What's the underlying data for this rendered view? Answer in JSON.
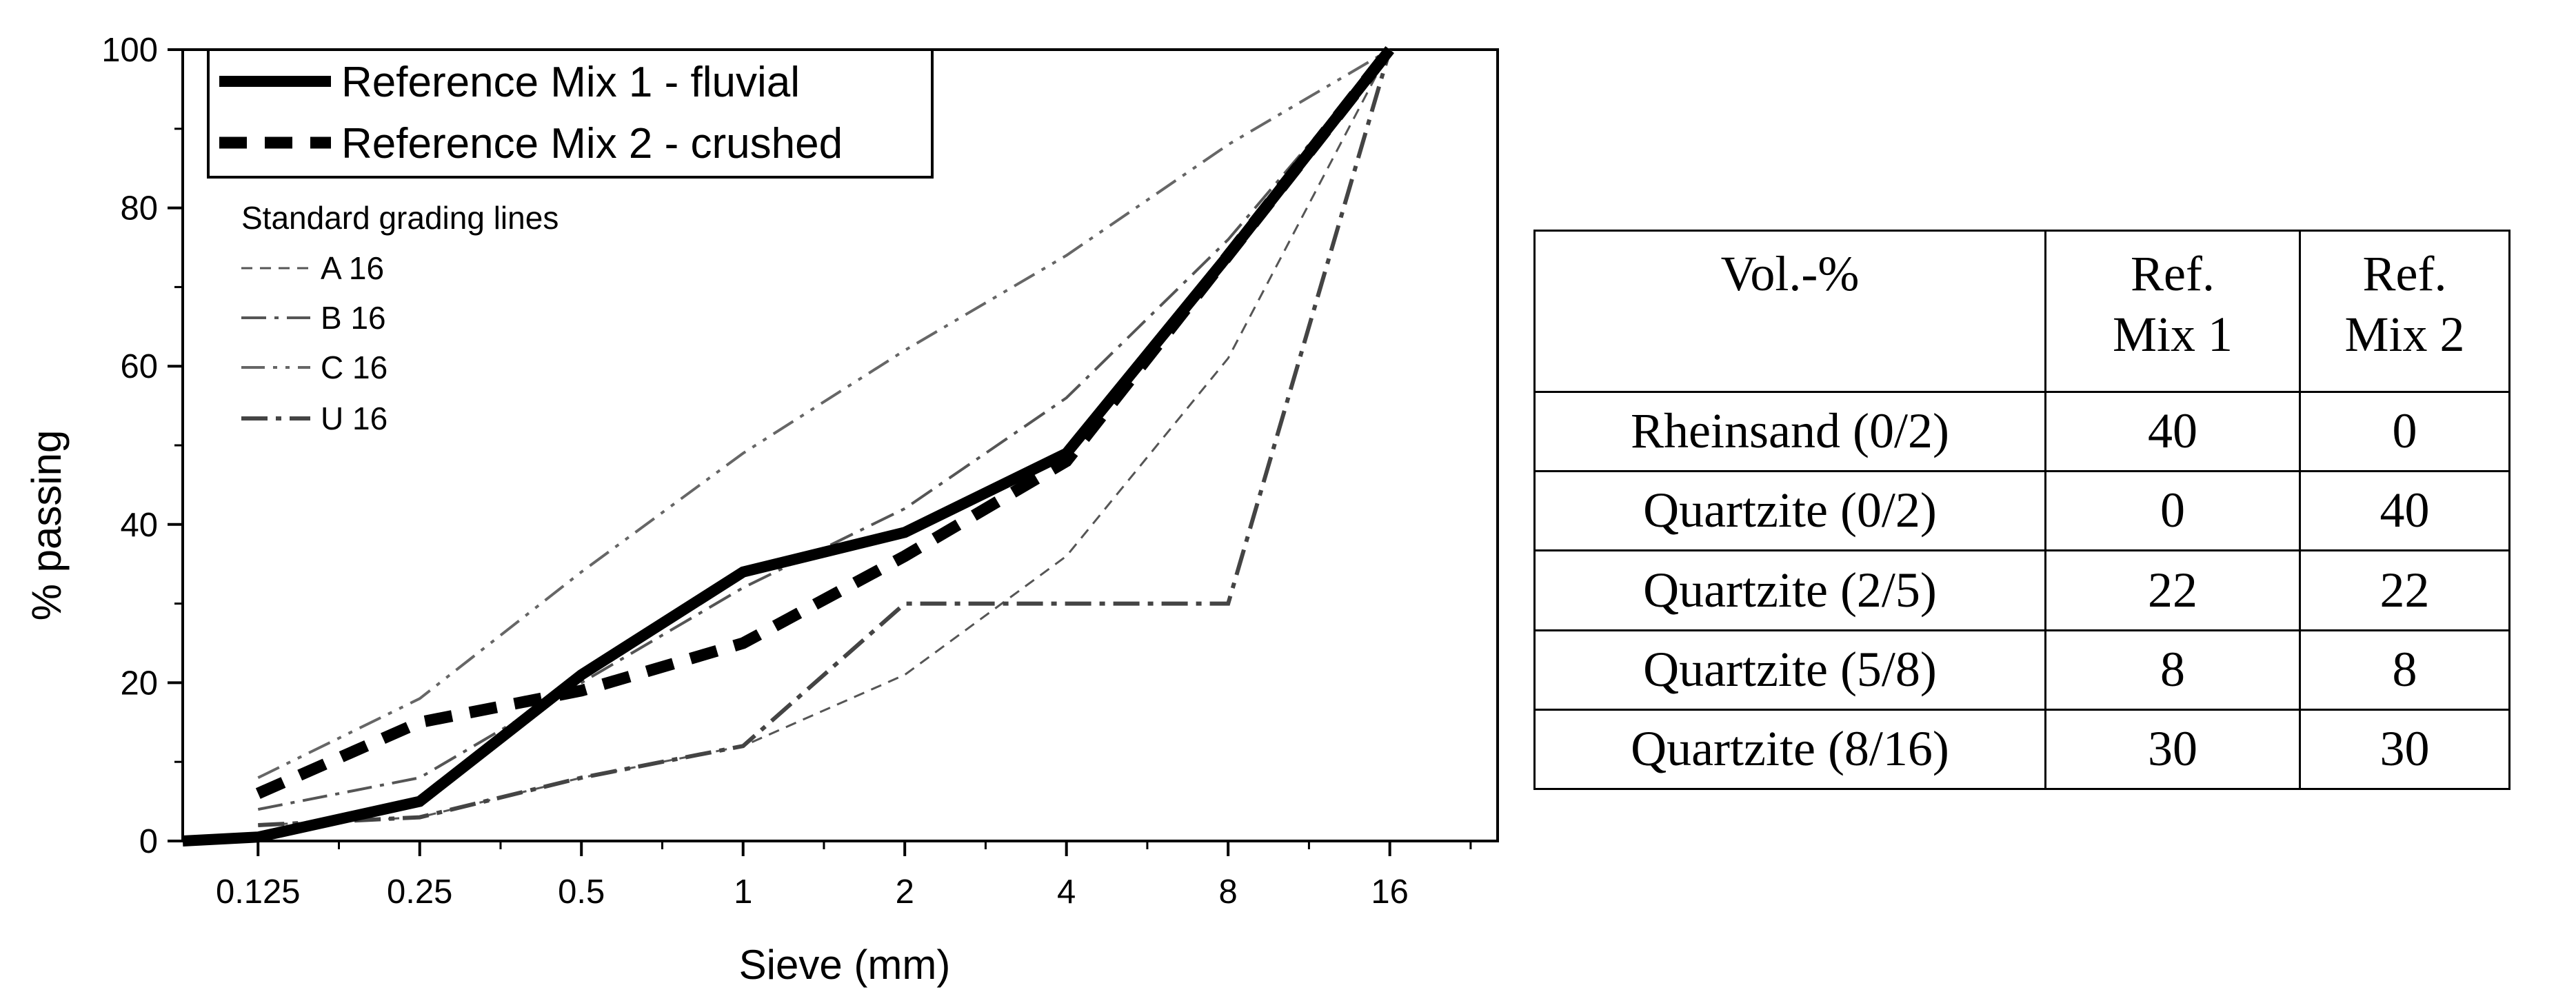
{
  "chart_data": {
    "type": "line",
    "xlabel": "Sieve (mm)",
    "ylabel": "% passing",
    "x_scale": "log2",
    "xlim": [
      0.0905,
      25.4
    ],
    "ylim": [
      0,
      100
    ],
    "x_ticks": [
      0.125,
      0.25,
      0.5,
      1,
      2,
      4,
      8,
      16
    ],
    "x_tick_labels": [
      "0.125",
      "0.25",
      "0.5",
      "1",
      "2",
      "4",
      "8",
      "16"
    ],
    "y_ticks": [
      0,
      20,
      40,
      60,
      80,
      100
    ],
    "y_tick_labels": [
      "0",
      "20",
      "40",
      "60",
      "80",
      "100"
    ],
    "legend_position": "top-left",
    "legend_group_title": "Standard grading lines",
    "series": [
      {
        "name": "Reference Mix 1 - fluvial",
        "style": "solid-thick",
        "color": "#000000",
        "x": [
          0.0905,
          0.125,
          0.25,
          0.5,
          1,
          2,
          4,
          8,
          16
        ],
        "y": [
          0,
          0.5,
          5,
          21,
          34,
          39,
          49,
          74,
          100
        ]
      },
      {
        "name": "Reference Mix 2 - crushed",
        "style": "dashed-thick",
        "color": "#000000",
        "x": [
          0.125,
          0.25,
          0.5,
          1,
          2,
          4,
          8,
          16
        ],
        "y": [
          6,
          15,
          19,
          25,
          36,
          48,
          74,
          100
        ]
      },
      {
        "name": "A 16",
        "style": "dashed-thin",
        "color": "#555555",
        "x": [
          0.125,
          0.25,
          0.5,
          1,
          2,
          4,
          8,
          16
        ],
        "y": [
          2,
          3,
          8,
          12,
          21,
          36,
          61,
          100
        ]
      },
      {
        "name": "B 16",
        "style": "dash-dot",
        "color": "#555555",
        "x": [
          0.125,
          0.25,
          0.5,
          1,
          2,
          4,
          8,
          16
        ],
        "y": [
          4,
          8,
          20,
          32,
          42,
          56,
          76,
          100
        ]
      },
      {
        "name": "C 16",
        "style": "dash-dot-dot",
        "color": "#666666",
        "x": [
          0.125,
          0.25,
          0.5,
          1,
          2,
          4,
          8,
          16
        ],
        "y": [
          8,
          18,
          34,
          49,
          62,
          74,
          88,
          100
        ]
      },
      {
        "name": "U 16",
        "style": "dash-dot-thick",
        "color": "#444444",
        "x": [
          0.125,
          0.25,
          0.5,
          1,
          2,
          4,
          8,
          16
        ],
        "y": [
          2,
          3,
          8,
          12,
          30,
          30,
          30,
          100
        ]
      }
    ]
  },
  "table": {
    "headers": [
      [
        "Vol.-%"
      ],
      [
        "Ref.",
        "Mix 1"
      ],
      [
        "Ref.",
        "Mix 2"
      ]
    ],
    "rows": [
      [
        "Rheinsand (0/2)",
        "40",
        "0"
      ],
      [
        "Quartzite (0/2)",
        "0",
        "40"
      ],
      [
        "Quartzite (2/5)",
        "22",
        "22"
      ],
      [
        "Quartzite (5/8)",
        "8",
        "8"
      ],
      [
        "Quartzite (8/16)",
        "30",
        "30"
      ]
    ]
  }
}
